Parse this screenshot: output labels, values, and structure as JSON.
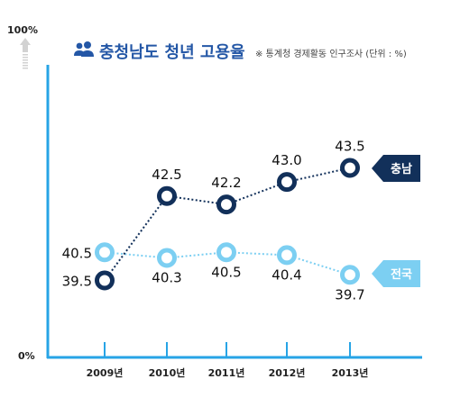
{
  "chart_data": {
    "type": "line",
    "title": "충청남도 청년 고용율",
    "source_note": "※ 통계청 경제활동 인구조사 (단위 : %)",
    "ylim": [
      0,
      100
    ],
    "y_top_label": "100%",
    "y_bottom_label": "0%",
    "categories": [
      "2009년",
      "2010년",
      "2011년",
      "2012년",
      "2013년"
    ],
    "series": [
      {
        "name": "충남",
        "values": [
          39.5,
          42.5,
          42.2,
          43.0,
          43.5
        ],
        "color": "#12305a"
      },
      {
        "name": "전국",
        "values": [
          40.5,
          40.3,
          40.5,
          40.4,
          39.7
        ],
        "color": "#7ccff2"
      }
    ],
    "grid": false,
    "legend": "right-side arrow tags"
  },
  "colors": {
    "axis": "#27a4e6",
    "title": "#2457a6",
    "muted": "#d2d2d2"
  },
  "icons": {
    "title_icon": "people-icon",
    "y_arrow": "up-arrow-icon"
  }
}
